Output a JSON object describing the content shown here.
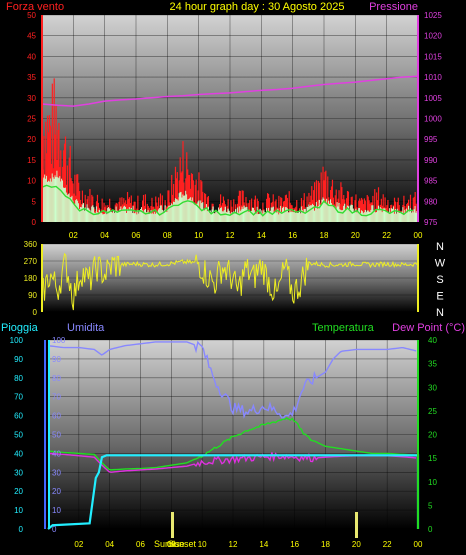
{
  "header": {
    "left_label": "Forza vento",
    "title": "24 hour graph day : 30 Agosto 2025",
    "right_label": "Pressione"
  },
  "bottom_header": {
    "rain_label": "Pioggia",
    "humidity_label": "Umidita",
    "temp_label": "Temperatura",
    "dew_label": "Dew Point (°C)"
  },
  "sun_labels": {
    "sunrise": "Sunrise",
    "sunset": "Sunset"
  },
  "colors": {
    "wind": "#ff2020",
    "wind_base": "#33dd33",
    "gust": "#ccffcc",
    "pressure": "#e040e0",
    "direction": "#eeee22",
    "humidity": "#8888ff",
    "temperature": "#22dd22",
    "dew_point": "#e030e0",
    "rain": "#22eeff",
    "title": "#ffff00"
  },
  "chart_data": [
    {
      "type": "line",
      "title": "24 hour graph day : 30 Agosto 2025",
      "xlabel": "",
      "ylabel": "Forza vento",
      "x_ticks": [
        "02",
        "04",
        "06",
        "08",
        "10",
        "12",
        "14",
        "16",
        "18",
        "20",
        "22",
        "00"
      ],
      "ylim": [
        0,
        50
      ],
      "y_ticks": [
        0,
        5,
        10,
        15,
        20,
        25,
        30,
        35,
        40,
        45,
        50
      ],
      "y2label": "Pressione",
      "y2lim": [
        975,
        1025
      ],
      "y2_ticks": [
        975,
        980,
        985,
        990,
        995,
        1000,
        1005,
        1010,
        1015,
        1020,
        1025
      ],
      "grid": true,
      "series": [
        {
          "name": "Forza vento",
          "axis": "left",
          "x": [
            0,
            0.5,
            1,
            1.5,
            2,
            2.5,
            3,
            3.5,
            4,
            4.5,
            5,
            5.5,
            6,
            6.5,
            7,
            7.5,
            8,
            8.5,
            9,
            9.5,
            10,
            10.5,
            11,
            11.5,
            12,
            12.5,
            13,
            13.5,
            14,
            14.5,
            15,
            15.5,
            16,
            16.5,
            17,
            17.5,
            18,
            18.5,
            19,
            19.5,
            20,
            20.5,
            21,
            21.5,
            22,
            22.5,
            23,
            23.5,
            24
          ],
          "y": [
            28,
            27,
            30,
            20,
            12,
            8,
            7,
            6,
            5,
            6,
            5,
            6,
            5,
            6,
            5,
            6,
            6,
            12,
            17,
            14,
            10,
            7,
            5,
            6,
            5,
            6,
            7,
            6,
            5,
            6,
            5,
            6,
            6,
            5,
            7,
            8,
            13,
            10,
            8,
            7,
            6,
            5,
            6,
            7,
            6,
            5,
            5,
            6,
            6
          ]
        },
        {
          "name": "Pressione",
          "axis": "right",
          "x": [
            0,
            1,
            2,
            3,
            4,
            5,
            6,
            7,
            8,
            9,
            10,
            11,
            12,
            13,
            14,
            15,
            16,
            17,
            18,
            19,
            20,
            21,
            22,
            23,
            24
          ],
          "y": [
            1003.5,
            1003.2,
            1003,
            1003.5,
            1004.2,
            1004.5,
            1004.7,
            1005,
            1005.3,
            1005.5,
            1005.8,
            1006,
            1006.2,
            1006.5,
            1006.8,
            1007,
            1007.3,
            1007.8,
            1008.2,
            1008.5,
            1008.8,
            1009.2,
            1009.6,
            1010,
            1010.2
          ]
        }
      ]
    },
    {
      "type": "line",
      "xlabel": "",
      "ylabel": "",
      "ylim": [
        0,
        360
      ],
      "y_ticks": [
        0,
        90,
        180,
        270,
        360
      ],
      "y2_ticks": [
        "N",
        "W",
        "S",
        "E",
        "N"
      ],
      "grid": true,
      "series": [
        {
          "name": "direction",
          "x": [
            0,
            0.5,
            1,
            1.5,
            2,
            2.5,
            3,
            3.5,
            4,
            4.5,
            5,
            6,
            7,
            8,
            9,
            10,
            10.5,
            11,
            11.5,
            12,
            12.5,
            13,
            13.5,
            14,
            14.5,
            15,
            15.5,
            16,
            16.5,
            17,
            18,
            19,
            20,
            21,
            22,
            23,
            24
          ],
          "y": [
            90,
            200,
            120,
            260,
            80,
            220,
            160,
            240,
            200,
            250,
            250,
            255,
            250,
            255,
            265,
            260,
            200,
            150,
            240,
            200,
            110,
            230,
            180,
            250,
            160,
            80,
            240,
            100,
            150,
            260,
            250,
            250,
            255,
            250,
            255,
            250,
            255
          ]
        }
      ]
    },
    {
      "type": "line",
      "xlabel": "",
      "ylabel": "Pioggia",
      "x_ticks": [
        "02",
        "04",
        "06",
        "08",
        "10",
        "12",
        "14",
        "16",
        "18",
        "20",
        "22",
        "00"
      ],
      "ylim": [
        0,
        100
      ],
      "y_ticks": [
        0,
        10,
        20,
        30,
        40,
        50,
        60,
        70,
        80,
        90,
        100
      ],
      "y2label": "Temperatura",
      "y2lim": [
        0,
        40
      ],
      "y2_ticks": [
        0,
        5,
        10,
        15,
        20,
        25,
        30,
        35,
        40
      ],
      "grid": true,
      "series": [
        {
          "name": "Umidita",
          "axis": "left",
          "x": [
            0,
            1,
            2,
            3,
            3.5,
            4,
            5,
            6,
            7,
            8,
            9,
            10,
            10.5,
            11,
            11.5,
            12,
            13,
            14,
            15,
            15.5,
            16,
            16.5,
            17,
            18,
            18.5,
            19,
            20,
            21,
            22,
            23,
            24
          ],
          "y": [
            97,
            96,
            96,
            95,
            92,
            95,
            97,
            98,
            99,
            99,
            99,
            96,
            85,
            76,
            70,
            64,
            62,
            65,
            62,
            59,
            63,
            74,
            78,
            83,
            90,
            94,
            95,
            95,
            95,
            96,
            94
          ]
        },
        {
          "name": "Temperatura",
          "axis": "right",
          "x": [
            0,
            1,
            2,
            3,
            3.5,
            4,
            5,
            6,
            7,
            8,
            9,
            10,
            11,
            12,
            13,
            14,
            15,
            15.5,
            16,
            16.5,
            17,
            18,
            19,
            20,
            21,
            22,
            23,
            24
          ],
          "y": [
            16.5,
            16.2,
            16,
            15.8,
            14,
            12.5,
            12.7,
            12.8,
            13,
            13.5,
            14,
            15.5,
            17.5,
            19.5,
            21,
            22,
            23,
            23.5,
            23,
            20.5,
            19,
            17.5,
            17,
            16.5,
            16,
            16,
            15.8,
            15.6
          ]
        },
        {
          "name": "Dew Point",
          "axis": "right",
          "x": [
            0,
            1,
            2,
            3,
            3.5,
            4,
            5,
            6,
            7,
            8,
            9,
            10,
            11,
            12,
            13,
            14,
            15,
            16,
            17,
            18,
            19,
            20,
            21,
            22,
            23,
            24
          ],
          "y": [
            16,
            15.8,
            15.5,
            15.2,
            13.5,
            12,
            12.3,
            12.5,
            12.7,
            13,
            13.3,
            14.2,
            14.5,
            14.8,
            15,
            15.3,
            15.5,
            15.3,
            15,
            15.2,
            15.4,
            15.5,
            15.5,
            15.5,
            15.3,
            15
          ]
        },
        {
          "name": "Pioggia",
          "axis": "left",
          "x": [
            0,
            0.3,
            2.7,
            2.9,
            3.1,
            3.3,
            3.5,
            3.8,
            24,
            24.05
          ],
          "y": [
            0,
            2,
            3,
            15,
            27,
            30,
            38,
            39,
            39,
            0
          ]
        }
      ]
    }
  ]
}
